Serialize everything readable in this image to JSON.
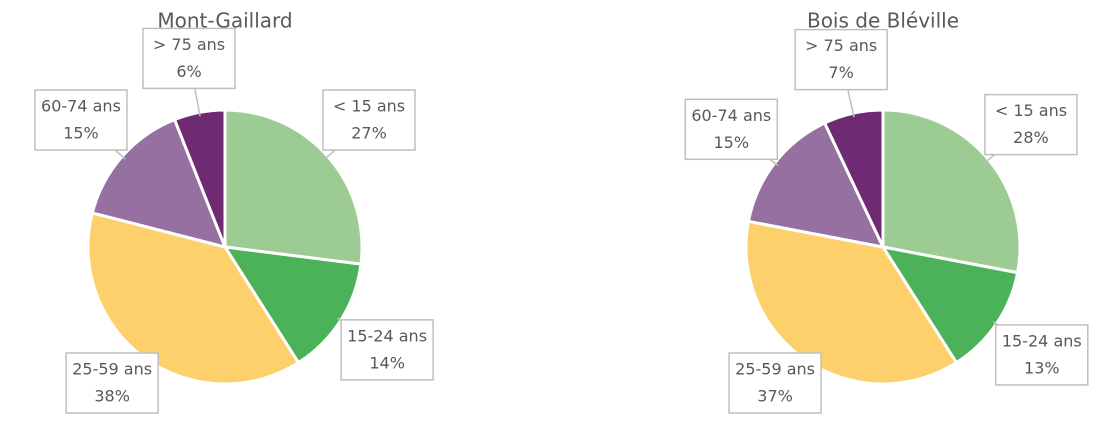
{
  "chart_data": [
    {
      "type": "pie",
      "title": "Mont-Gaillard",
      "categories": [
        "< 15 ans",
        "15-24 ans",
        "25-59 ans",
        "60-74 ans",
        "> 75 ans"
      ],
      "values": [
        27,
        14,
        38,
        15,
        6
      ],
      "value_labels": [
        "27%",
        "14%",
        "38%",
        "15%",
        "6%"
      ],
      "colors": [
        "#9ccb94",
        "#4cb25a",
        "#fdd06b",
        "#9670a0",
        "#6e2a73"
      ]
    },
    {
      "type": "pie",
      "title": "Bois de Bléville",
      "categories": [
        "< 15 ans",
        "15-24 ans",
        "25-59 ans",
        "60-74 ans",
        "> 75 ans"
      ],
      "values": [
        28,
        13,
        37,
        15,
        7
      ],
      "value_labels": [
        "28%",
        "13%",
        "37%",
        "15%",
        "7%"
      ],
      "colors": [
        "#9ccb94",
        "#4cb25a",
        "#fdd06b",
        "#9670a0",
        "#6e2a73"
      ]
    }
  ]
}
